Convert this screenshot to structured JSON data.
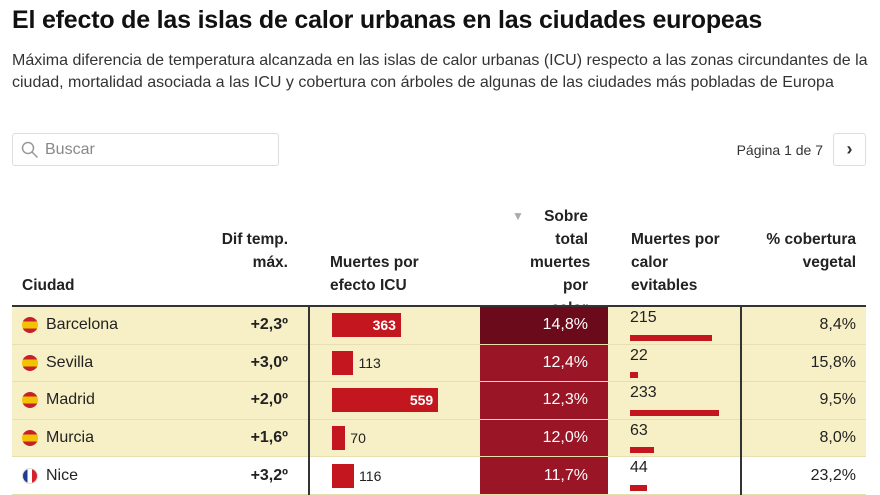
{
  "title": "El efecto de las islas de calor urbanas en las ciudades europeas",
  "subtitle": "Máxima diferencia de temperatura alcanzada en las islas de calor urbanas (ICU) respecto a las zonas circundantes de la ciudad, mortalidad asociada a las ICU y cobertura con árboles de algunas de las ciudades más pobladas de Europa",
  "search": {
    "placeholder": "Buscar",
    "icon": "search-icon"
  },
  "pager": {
    "label": "Página 1 de 7",
    "next_icon": "chevron-right-icon"
  },
  "columns": {
    "ciudad": "Ciudad",
    "dif": "Dif temp. máx.",
    "icu": "Muertes por efecto ICU",
    "sobre": "Sobre total muertes por calor",
    "evit": "Muertes por calor evitables",
    "cob": "% cobertura vegetal",
    "sort_icon": "sort-down-icon"
  },
  "colors": {
    "bar": "#c4161f",
    "heat_max": "#6b0a1a",
    "heat": "#9a1525",
    "highlight": "#f7f0c6"
  },
  "rows": [
    {
      "flag": "es",
      "ciudad": "Barcelona",
      "dif": "+2,3º",
      "icu": 363,
      "sobre": "14,8%",
      "evit": 215,
      "cob": "8,4%",
      "hl": true,
      "max": true
    },
    {
      "flag": "es",
      "ciudad": "Sevilla",
      "dif": "+3,0º",
      "icu": 113,
      "sobre": "12,4%",
      "evit": 22,
      "cob": "15,8%",
      "hl": true
    },
    {
      "flag": "es",
      "ciudad": "Madrid",
      "dif": "+2,0º",
      "icu": 559,
      "sobre": "12,3%",
      "evit": 233,
      "cob": "9,5%",
      "hl": true
    },
    {
      "flag": "es",
      "ciudad": "Murcia",
      "dif": "+1,6º",
      "icu": 70,
      "sobre": "12,0%",
      "evit": 63,
      "cob": "8,0%",
      "hl": true
    },
    {
      "flag": "fr",
      "ciudad": "Nice",
      "dif": "+3,2º",
      "icu": 116,
      "sobre": "11,7%",
      "evit": 44,
      "cob": "23,2%",
      "hl": false
    }
  ]
}
